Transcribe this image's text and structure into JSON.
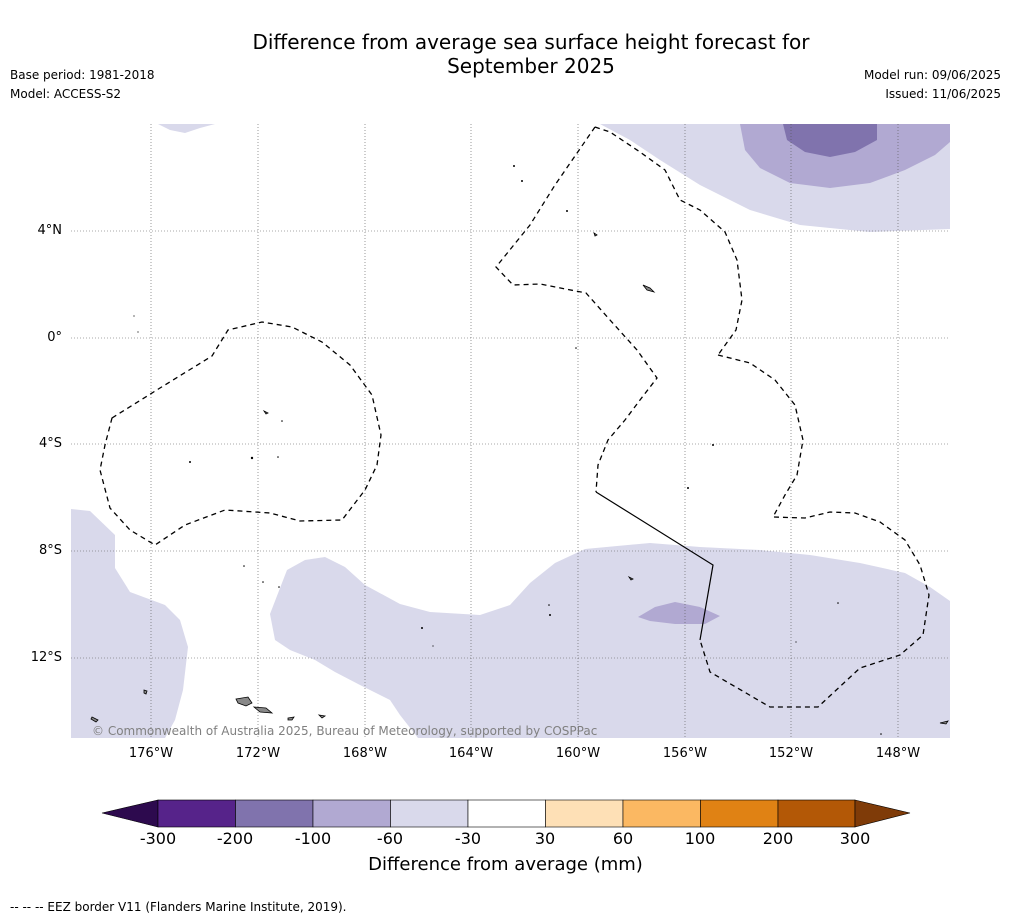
{
  "header": {
    "title_line1": "Difference from average sea surface height forecast for",
    "title_line2": "September 2025",
    "base_period": "Base period: 1981-2018",
    "model": "Model: ACCESS-S2",
    "model_run": "Model run: 09/06/2025",
    "issued": "Issued: 11/06/2025"
  },
  "map": {
    "lat_labels": [
      "4°N",
      "0°",
      "4°S",
      "8°S",
      "12°S"
    ],
    "lon_labels": [
      "176°W",
      "172°W",
      "168°W",
      "164°W",
      "160°W",
      "156°W",
      "152°W",
      "148°W"
    ],
    "copyright": "© Commonwealth of Australia 2025, Bureau of Meteorology, supported by COSPPac"
  },
  "colorbar": {
    "ticks": [
      "-300",
      "-200",
      "-100",
      "-60",
      "-30",
      "30",
      "60",
      "100",
      "200",
      "300"
    ],
    "label": "Difference from average (mm)",
    "colors": [
      "#2d0a4e",
      "#56238a",
      "#8073ad",
      "#b1a9d2",
      "#d9d9eb",
      "#ffffff",
      "#fee0b6",
      "#fbb862",
      "#e08214",
      "#b35806",
      "#7f3b08"
    ]
  },
  "footer": {
    "legend_text": "--  --  -- EEZ border V11 (Flanders Marine Institute, 2019)."
  }
}
